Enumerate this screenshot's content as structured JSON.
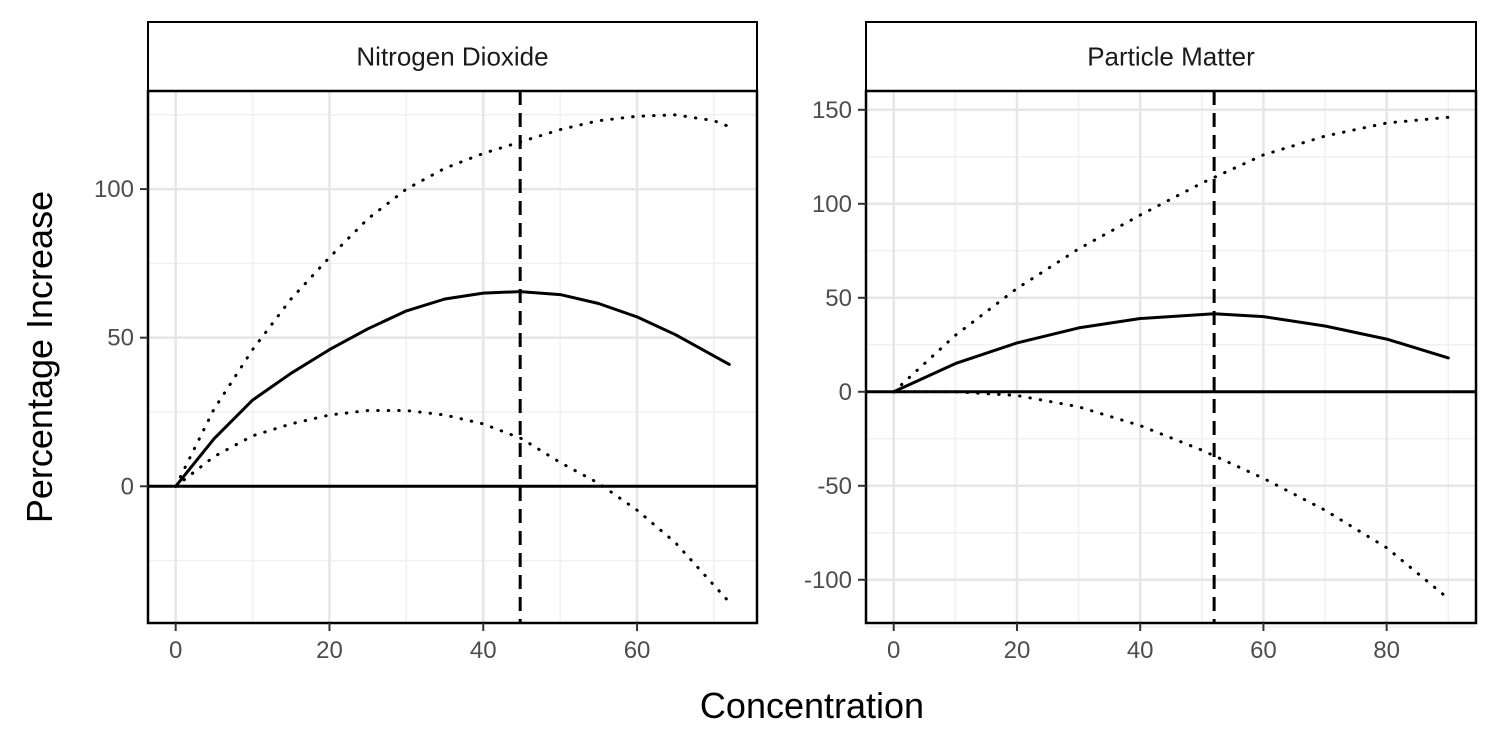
{
  "chart_data": {
    "type": "line",
    "xlabel": "Concentration",
    "ylabel": "Percentage Increase",
    "grid": true,
    "panels": [
      {
        "title": "Nitrogen Dioxide",
        "xlim": [
          -3.6,
          75.6
        ],
        "ylim": [
          -46,
          133
        ],
        "xticks": [
          0,
          20,
          40,
          60
        ],
        "yticks": [
          0,
          50,
          100
        ],
        "yminor": [
          -25,
          25,
          75,
          125
        ],
        "xminor": [
          10,
          30,
          50,
          70
        ],
        "vline": 44.8,
        "hline": 0,
        "series": [
          {
            "style": "solid",
            "x": [
              0,
              5,
              10,
              15,
              20,
              25,
              30,
              35,
              40,
              44.8,
              50,
              55,
              60,
              65,
              72
            ],
            "y": [
              0,
              16,
              29,
              38,
              46,
              53,
              59,
              63,
              65,
              65.5,
              64.5,
              61.5,
              57,
              51,
              41
            ]
          },
          {
            "style": "dotted",
            "x": [
              0,
              5,
              10,
              15,
              20,
              25,
              30,
              35,
              40,
              45,
              50,
              55,
              60,
              65,
              70,
              72
            ],
            "y": [
              0,
              26,
              46,
              63,
              77,
              90,
              100,
              107,
              112,
              116,
              120,
              123,
              124.5,
              125,
              123,
              121
            ]
          },
          {
            "style": "dotted",
            "x": [
              0,
              5,
              10,
              15,
              20,
              25,
              30,
              35,
              40,
              45,
              50,
              55,
              60,
              65,
              72
            ],
            "y": [
              0,
              10,
              17,
              21,
              24,
              25.5,
              25.5,
              24,
              21,
              16,
              8,
              1,
              -8,
              -19,
              -39
            ]
          }
        ]
      },
      {
        "title": "Particle Matter",
        "xlim": [
          -4.5,
          94.5
        ],
        "ylim": [
          -123,
          160
        ],
        "xticks": [
          0,
          20,
          40,
          60,
          80
        ],
        "yticks": [
          -100,
          -50,
          0,
          50,
          100,
          150
        ],
        "yminor": [
          -125,
          -75,
          -25,
          25,
          75,
          125
        ],
        "xminor": [
          10,
          30,
          50,
          70,
          90
        ],
        "vline": 52,
        "hline": 0,
        "series": [
          {
            "style": "solid",
            "x": [
              0,
              10,
              20,
              30,
              40,
              52,
              60,
              70,
              80,
              90
            ],
            "y": [
              0,
              15,
              26,
              34,
              39,
              41.5,
              40,
              35,
              28,
              18
            ]
          },
          {
            "style": "dotted",
            "x": [
              0,
              10,
              20,
              30,
              40,
              50,
              60,
              70,
              80,
              90
            ],
            "y": [
              0,
              30,
              55,
              76,
              94,
              111,
              126,
              136,
              143,
              146
            ]
          },
          {
            "style": "dotted",
            "x": [
              0,
              10,
              20,
              30,
              40,
              50,
              60,
              70,
              80,
              90
            ],
            "y": [
              0,
              0,
              -2,
              -8,
              -18,
              -31,
              -46,
              -63,
              -83,
              -110
            ]
          }
        ]
      }
    ]
  }
}
